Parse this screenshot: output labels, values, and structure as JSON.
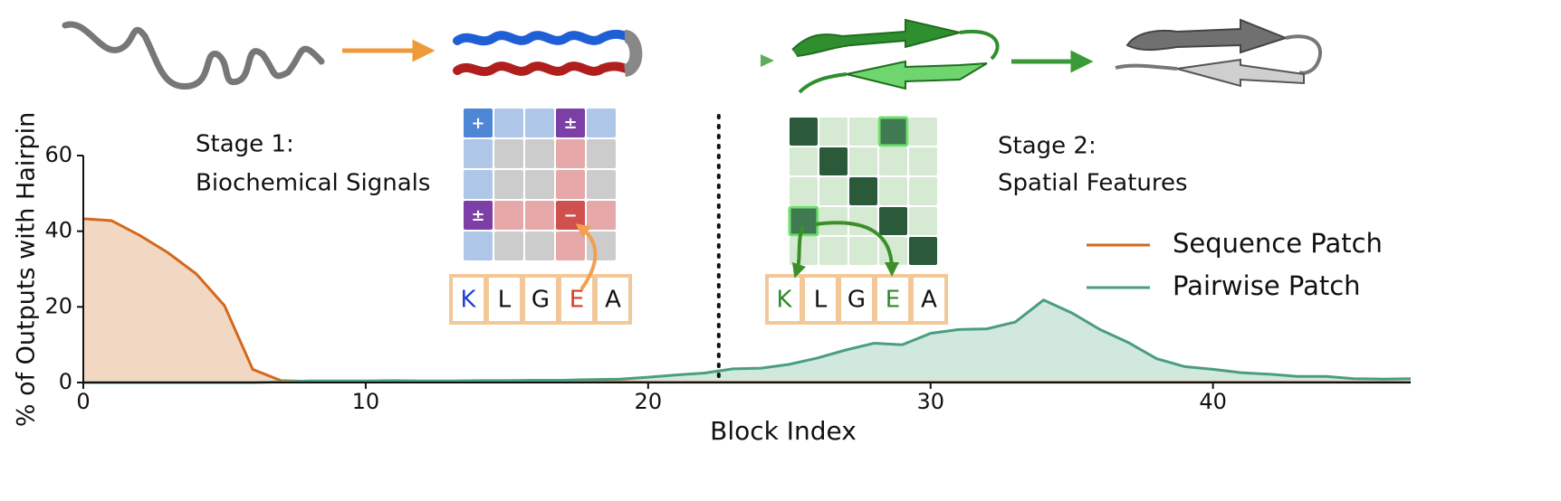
{
  "chart_data": {
    "type": "area-line",
    "xlabel": "Block Index",
    "ylabel": "% of Outputs with Hairpin",
    "x": [
      0,
      1,
      2,
      3,
      4,
      5,
      6,
      7,
      8,
      9,
      10,
      11,
      12,
      13,
      14,
      15,
      16,
      17,
      18,
      19,
      20,
      21,
      22,
      23,
      24,
      25,
      26,
      27,
      28,
      29,
      30,
      31,
      32,
      33,
      34,
      35,
      36,
      37,
      38,
      39,
      40,
      41,
      42,
      43,
      44,
      45,
      46,
      47
    ],
    "series": [
      {
        "name": "Sequence Patch",
        "color": "#d2691e",
        "fill": "#f1d6c0",
        "values": [
          43.3,
          42.8,
          38.9,
          34.3,
          28.7,
          20.3,
          3.5,
          0.5,
          0.3,
          0.2,
          0.2,
          0.2,
          0.2,
          0.2,
          0.2,
          0.2,
          0.2,
          0.2,
          0.2,
          0.2,
          0.1,
          0.1,
          0.1,
          0.1,
          0.1,
          0.1,
          0.1,
          0.1,
          0.1,
          0.1,
          0.1,
          0.1,
          0.1,
          0.1,
          0.1,
          0.1,
          0.1,
          0.1,
          0.1,
          0.1,
          0.1,
          0.1,
          0.1,
          0.1,
          0.1,
          0.1,
          0.1,
          0.1
        ]
      },
      {
        "name": "Pairwise Patch",
        "color": "#4a9e80",
        "fill": "#cfe7dd",
        "values": [
          0,
          0,
          0,
          0,
          0,
          0,
          0,
          0.2,
          0.4,
          0.4,
          0.4,
          0.5,
          0.4,
          0.4,
          0.5,
          0.5,
          0.6,
          0.6,
          0.8,
          0.9,
          1.4,
          2.0,
          2.5,
          3.6,
          3.8,
          4.8,
          6.5,
          8.6,
          10.4,
          10.0,
          13.0,
          14.0,
          14.2,
          16.0,
          21.8,
          18.4,
          14.0,
          10.6,
          6.3,
          4.2,
          3.5,
          2.6,
          2.2,
          1.6,
          1.6,
          1.0,
          0.9,
          1.0
        ]
      }
    ],
    "xlim": [
      0,
      47
    ],
    "ylim": [
      0,
      60
    ],
    "xticks": [
      0,
      10,
      20,
      30,
      40
    ],
    "yticks": [
      0,
      20,
      40,
      60
    ],
    "divider_x": 22.5,
    "legend": "right",
    "annotations": {
      "stage1": [
        "Stage 1:",
        "Biochemical Signals"
      ],
      "stage2": [
        "Stage 2:",
        "Spatial Features"
      ],
      "matrix_symbols": [
        "+",
        "±",
        "±",
        "−"
      ],
      "residues_1": [
        "K",
        "L",
        "G",
        "E",
        "A"
      ],
      "residues_2": [
        "K",
        "L",
        "G",
        "E",
        "A"
      ]
    }
  }
}
